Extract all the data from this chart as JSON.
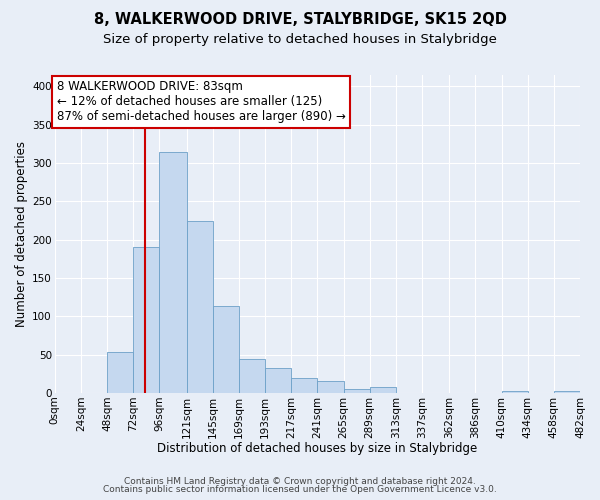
{
  "title": "8, WALKERWOOD DRIVE, STALYBRIDGE, SK15 2QD",
  "subtitle": "Size of property relative to detached houses in Stalybridge",
  "xlabel": "Distribution of detached houses by size in Stalybridge",
  "ylabel": "Number of detached properties",
  "bin_edges": [
    0,
    24,
    48,
    72,
    96,
    121,
    145,
    169,
    193,
    217,
    241,
    265,
    289,
    313,
    337,
    362,
    386,
    410,
    434,
    458,
    482
  ],
  "bin_labels": [
    "0sqm",
    "24sqm",
    "48sqm",
    "72sqm",
    "96sqm",
    "121sqm",
    "145sqm",
    "169sqm",
    "193sqm",
    "217sqm",
    "241sqm",
    "265sqm",
    "289sqm",
    "313sqm",
    "337sqm",
    "362sqm",
    "386sqm",
    "410sqm",
    "434sqm",
    "458sqm",
    "482sqm"
  ],
  "bar_heights": [
    0,
    0,
    53,
    190,
    315,
    225,
    113,
    44,
    32,
    20,
    15,
    5,
    8,
    0,
    0,
    0,
    0,
    2,
    0,
    3
  ],
  "bar_color": "#c5d8ef",
  "bar_edge_color": "#6ca0c8",
  "vline_x": 83,
  "vline_color": "#cc0000",
  "annotation_text": "8 WALKERWOOD DRIVE: 83sqm\n← 12% of detached houses are smaller (125)\n87% of semi-detached houses are larger (890) →",
  "annotation_box_facecolor": "#ffffff",
  "annotation_box_edgecolor": "#cc0000",
  "ylim": [
    0,
    415
  ],
  "xlim": [
    0,
    482
  ],
  "background_color": "#e8eef7",
  "axes_background_color": "#e8eef7",
  "grid_color": "#ffffff",
  "title_fontsize": 10.5,
  "subtitle_fontsize": 9.5,
  "xlabel_fontsize": 8.5,
  "ylabel_fontsize": 8.5,
  "tick_fontsize": 7.5,
  "annotation_fontsize": 8.5,
  "yticks": [
    0,
    50,
    100,
    150,
    200,
    250,
    300,
    350,
    400
  ],
  "footer_line1": "Contains HM Land Registry data © Crown copyright and database right 2024.",
  "footer_line2": "Contains public sector information licensed under the Open Government Licence v3.0.",
  "footer_fontsize": 6.5
}
